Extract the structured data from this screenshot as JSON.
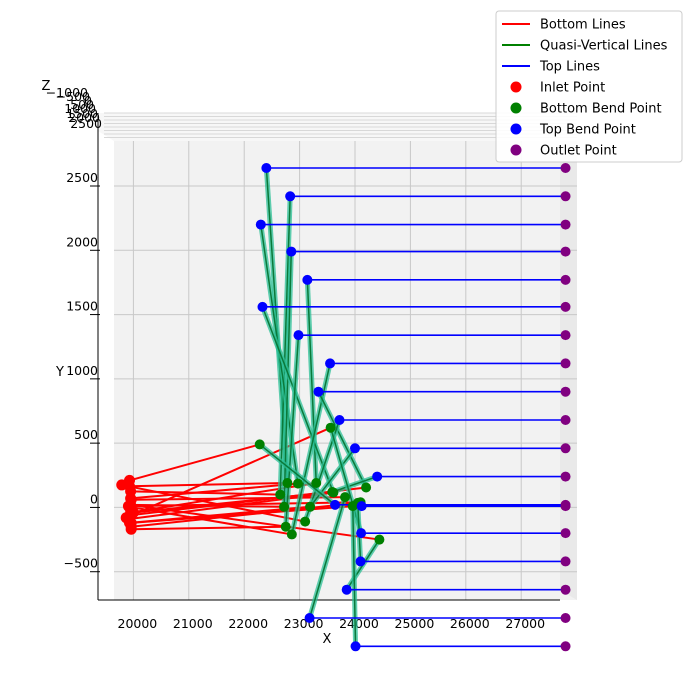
{
  "chart_data": {
    "type": "line",
    "projection": "3d",
    "xlabel": "X",
    "ylabel": "Y",
    "zlabel": "Z",
    "xlim": [
      19650,
      27700
    ],
    "ylim": [
      -720,
      2850
    ],
    "x_ticks": [
      "20000",
      "21000",
      "22000",
      "23000",
      "24000",
      "25000",
      "26000",
      "27000"
    ],
    "x_tick_values": [
      20000,
      21000,
      22000,
      23000,
      24000,
      25000,
      26000,
      27000
    ],
    "y_ticks": [
      "−500",
      "0",
      "500",
      "1000",
      "1500",
      "2000",
      "2500"
    ],
    "y_tick_values": [
      -500,
      0,
      500,
      1000,
      1500,
      2000,
      2500
    ],
    "z_ticks": [
      "−1000",
      "−500",
      "0",
      "500",
      "1000",
      "1500",
      "2000",
      "2500"
    ],
    "grid": true,
    "legend_position": "top-right",
    "legend": [
      {
        "label": "Bottom Lines",
        "kind": "line",
        "color": "#ff0000"
      },
      {
        "label": "Quasi-Vertical Lines",
        "kind": "line",
        "color": "#008000"
      },
      {
        "label": "Top Lines",
        "kind": "line",
        "color": "#0000ff"
      },
      {
        "label": "Inlet Point",
        "kind": "marker",
        "color": "#ff0000"
      },
      {
        "label": "Bottom Bend Point",
        "kind": "marker",
        "color": "#008000"
      },
      {
        "label": "Top Bend Point",
        "kind": "marker",
        "color": "#0000ff"
      },
      {
        "label": "Outlet Point",
        "kind": "marker",
        "color": "#800080"
      }
    ],
    "outlet_x": 27800,
    "paths": [
      {
        "inlet": [
          19930,
          165
        ],
        "bottom": [
          22780,
          190
        ],
        "top": [
          22400,
          2640
        ]
      },
      {
        "inlet": [
          19950,
          125
        ],
        "bottom": [
          22650,
          100
        ],
        "top": [
          22830,
          2420
        ]
      },
      {
        "inlet": [
          19950,
          70
        ],
        "bottom": [
          22970,
          185
        ],
        "top": [
          22300,
          2200
        ]
      },
      {
        "inlet": [
          19940,
          20
        ],
        "bottom": [
          22720,
          5
        ],
        "top": [
          22850,
          1990
        ]
      },
      {
        "inlet": [
          19950,
          -40
        ],
        "bottom": [
          23300,
          190
        ],
        "top": [
          23140,
          1770
        ]
      },
      {
        "inlet": [
          19930,
          -90
        ],
        "bottom": [
          23610,
          115
        ],
        "top": [
          22330,
          1560
        ]
      },
      {
        "inlet": [
          19960,
          -170
        ],
        "bottom": [
          22750,
          -150
        ],
        "top": [
          22980,
          1340
        ]
      },
      {
        "inlet": [
          19920,
          5
        ],
        "bottom": [
          22860,
          -210
        ],
        "top": [
          23550,
          1120
        ]
      },
      {
        "inlet": [
          19960,
          -60
        ],
        "bottom": [
          24200,
          155
        ],
        "top": [
          23340,
          900
        ]
      },
      {
        "inlet": [
          19790,
          175
        ],
        "bottom": [
          23100,
          -110
        ],
        "top": [
          23720,
          680
        ]
      },
      {
        "inlet": [
          19930,
          -120
        ],
        "bottom": [
          23190,
          5
        ],
        "top": [
          24000,
          460
        ]
      },
      {
        "inlet": [
          20000,
          -40
        ],
        "bottom": [
          23590,
          120
        ],
        "top": [
          24400,
          240
        ]
      },
      {
        "inlet": [
          19930,
          210
        ],
        "bottom": [
          22280,
          490
        ],
        "top": [
          23640,
          20
        ]
      },
      {
        "inlet": [
          19870,
          -80
        ],
        "bottom": [
          23560,
          620
        ],
        "top": [
          24110,
          -200
        ]
      },
      {
        "inlet": [
          19960,
          -150
        ],
        "bottom": [
          24050,
          35
        ],
        "top": [
          24100,
          -420
        ]
      },
      {
        "inlet": [
          19950,
          20
        ],
        "bottom": [
          24440,
          -250
        ],
        "top": [
          23850,
          -640
        ]
      },
      {
        "inlet": [
          19960,
          60
        ],
        "bottom": [
          23820,
          80
        ],
        "top": [
          23180,
          -860
        ]
      },
      {
        "inlet": [
          19960,
          -120
        ],
        "bottom": [
          23960,
          10
        ],
        "top": [
          24010,
          -1080
        ]
      },
      {
        "inlet": [
          19910,
          10
        ],
        "bottom": [
          24100,
          40
        ],
        "top": [
          24120,
          10
        ]
      }
    ]
  }
}
